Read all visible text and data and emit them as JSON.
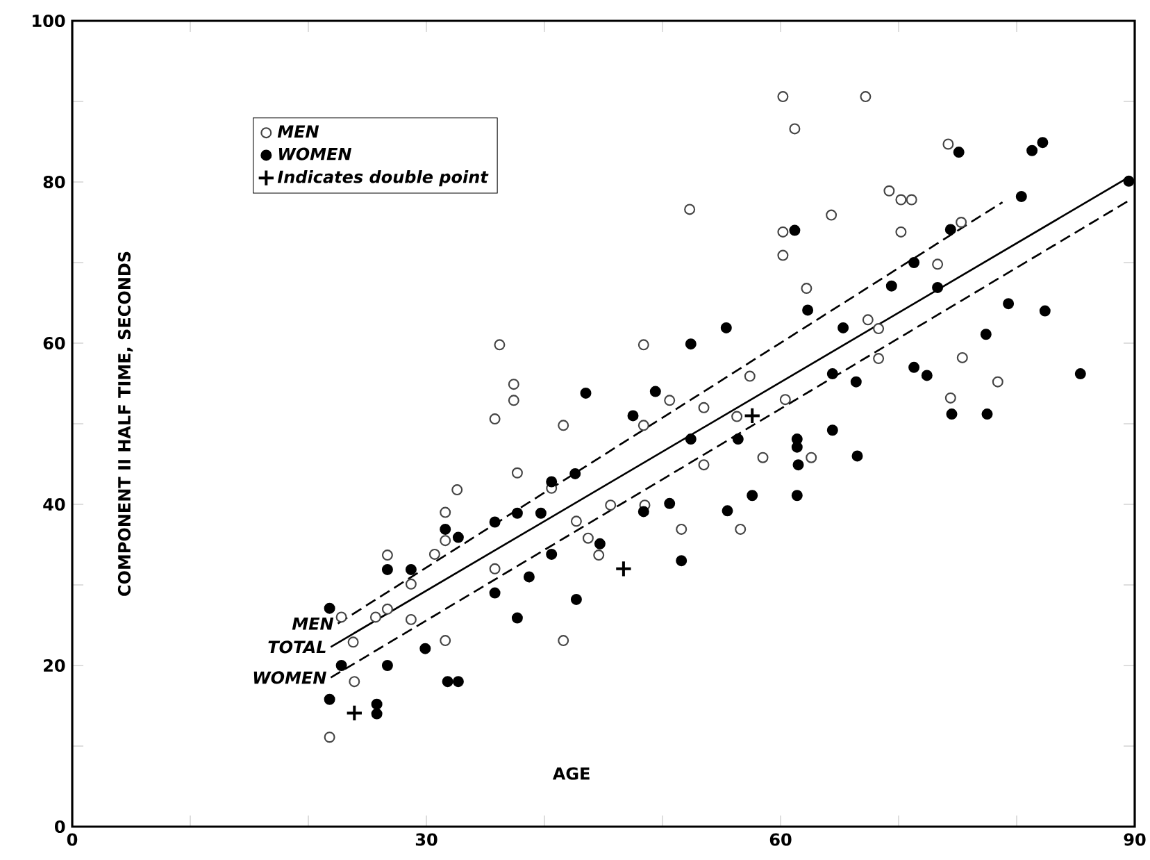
{
  "chart_data": {
    "type": "scatter",
    "xlabel": "AGE",
    "ylabel": "COMPONENT II HALF TIME, SECONDS",
    "xlim": [
      0,
      90
    ],
    "ylim": [
      0,
      100
    ],
    "xticks": [
      0,
      {
        "value": 10,
        "label": null
      },
      {
        "value": 20,
        "label": null
      },
      30,
      {
        "value": 40,
        "label": null
      },
      {
        "value": 50,
        "label": null
      },
      60,
      {
        "value": 70,
        "label": null
      },
      {
        "value": 80,
        "label": null
      },
      90
    ],
    "yticks": [
      0,
      {
        "value": 10,
        "label": null
      },
      20,
      {
        "value": 30,
        "label": null
      },
      40,
      {
        "value": 50,
        "label": null
      },
      60,
      {
        "value": 70,
        "label": null
      },
      80,
      {
        "value": 90,
        "label": null
      },
      100
    ],
    "grid": false,
    "legend": "top left",
    "series": [
      {
        "name": "MEN",
        "color": "#444444",
        "marker": "circle",
        "x": [
          21.8,
          22.8,
          23.8,
          23.9,
          25.7,
          26.7,
          26.7,
          28.7,
          28.7,
          30.7,
          31.6,
          31.6,
          31.6,
          32.6,
          35.8,
          35.8,
          37.7,
          40.6,
          41.6,
          41.6,
          42.7,
          36.2,
          37.4,
          37.4,
          60.2,
          67.2,
          61.2,
          74.2,
          52.3,
          69.2,
          70.2,
          71.1,
          64.3,
          60.2,
          60.2,
          70.2,
          75.3,
          73.3,
          62.2,
          67.4,
          68.3,
          68.3,
          75.4,
          78.4,
          74.4,
          48.4,
          50.6,
          53.5,
          57.4,
          60.4,
          56.3,
          48.4,
          53.5,
          58.5,
          62.6,
          45.6,
          48.5,
          43.7,
          44.6,
          51.6,
          56.6
        ],
        "values": [
          11.1,
          26.0,
          22.9,
          18.0,
          26.0,
          27.0,
          33.7,
          30.1,
          25.7,
          33.8,
          39.0,
          23.1,
          35.5,
          41.8,
          32.0,
          50.6,
          43.9,
          42.0,
          23.1,
          49.8,
          37.9,
          59.8,
          54.9,
          52.9,
          90.6,
          90.6,
          86.6,
          84.7,
          76.6,
          78.9,
          77.8,
          77.8,
          75.9,
          73.8,
          70.9,
          73.8,
          75.0,
          69.8,
          66.8,
          62.9,
          61.8,
          58.1,
          58.2,
          55.2,
          53.2,
          59.8,
          52.9,
          52.0,
          55.9,
          53.0,
          50.9,
          49.8,
          44.9,
          45.8,
          45.8,
          39.9,
          39.9,
          35.8,
          33.7,
          36.9,
          36.9
        ]
      },
      {
        "name": "WOMEN",
        "color": "#000000",
        "marker": "circle",
        "x": [
          21.8,
          22.8,
          21.8,
          25.8,
          25.8,
          26.7,
          26.7,
          28.7,
          29.9,
          31.6,
          32.7,
          31.8,
          32.7,
          35.8,
          35.8,
          37.7,
          37.7,
          38.7,
          39.7,
          40.6,
          40.6,
          42.6,
          42.7,
          43.5,
          75.1,
          81.3,
          82.2,
          89.5,
          80.4,
          61.2,
          74.4,
          71.3,
          69.4,
          73.3,
          62.3,
          65.3,
          79.3,
          82.4,
          77.4,
          71.3,
          72.4,
          85.4,
          64.4,
          66.4,
          55.4,
          52.4,
          49.4,
          47.5,
          74.5,
          77.5,
          64.4,
          52.4,
          56.4,
          61.4,
          61.4,
          61.5,
          66.5,
          57.6,
          61.4,
          55.5,
          50.6,
          48.4,
          44.7,
          51.6
        ],
        "values": [
          27.1,
          20.0,
          15.8,
          15.2,
          14.0,
          31.9,
          20.0,
          31.9,
          22.1,
          36.9,
          35.9,
          18.0,
          18.0,
          37.8,
          29.0,
          38.9,
          25.9,
          31.0,
          38.9,
          42.8,
          33.8,
          43.8,
          28.2,
          53.8,
          83.7,
          83.9,
          84.9,
          80.1,
          78.2,
          74.0,
          74.1,
          70.0,
          67.1,
          66.9,
          64.1,
          61.9,
          64.9,
          64.0,
          61.1,
          57.0,
          56.0,
          56.2,
          56.2,
          55.2,
          61.9,
          59.9,
          54.0,
          51.0,
          51.2,
          51.2,
          49.2,
          48.1,
          48.1,
          48.1,
          47.1,
          44.9,
          46.0,
          41.1,
          41.1,
          39.2,
          40.1,
          39.1,
          35.1,
          33.0
        ]
      },
      {
        "name": "Indicates double point",
        "color": "#000000",
        "marker": "cross",
        "x": [
          23.9,
          46.7,
          57.6
        ],
        "values": [
          14.1,
          32.0,
          51.0
        ]
      },
      {
        "name": "MEN",
        "type": "line",
        "color": "#000000",
        "line_style": "dashed",
        "x": [
          22.5,
          78.8
        ],
        "values": [
          25.2,
          77.5
        ]
      },
      {
        "name": "TOTAL",
        "type": "line",
        "color": "#000000",
        "line_style": "solid",
        "x": [
          21.9,
          89.5
        ],
        "values": [
          22.3,
          80.6
        ]
      },
      {
        "name": "WOMEN",
        "type": "line",
        "color": "#000000",
        "line_style": "dashed",
        "x": [
          21.9,
          89.4
        ],
        "values": [
          18.5,
          77.6
        ]
      }
    ]
  }
}
